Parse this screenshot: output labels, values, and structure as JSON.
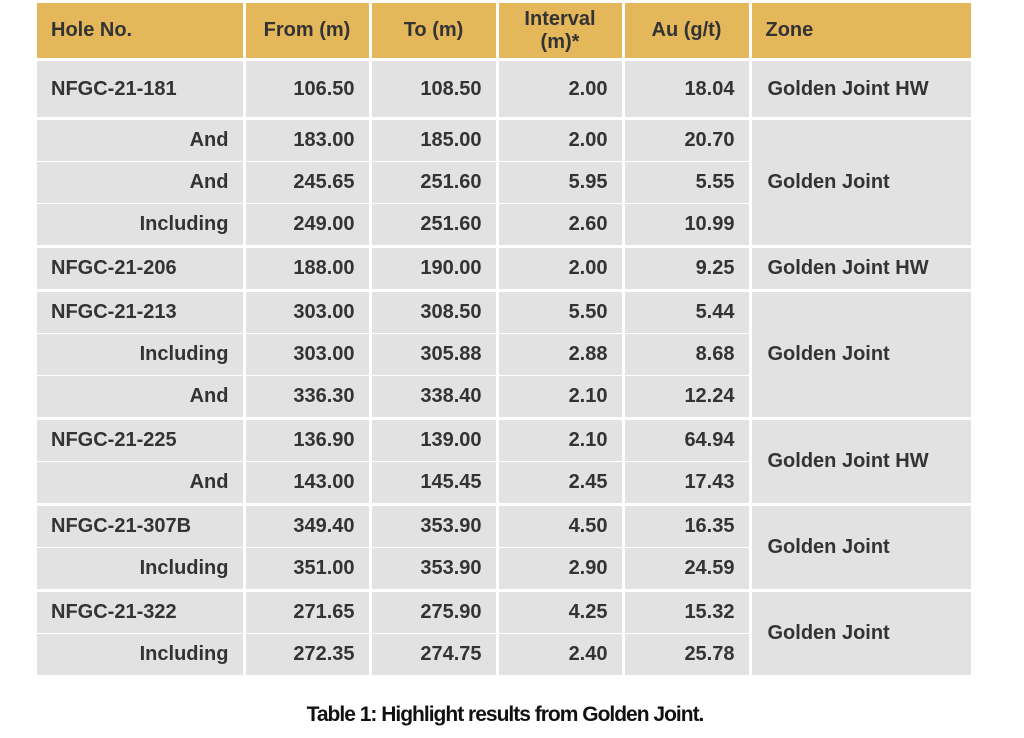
{
  "table": {
    "header": [
      "Hole No.",
      "From (m)",
      "To (m)",
      "Interval (m)*",
      "Au (g/t)",
      "Zone"
    ],
    "groups": [
      {
        "zone": "Golden Joint HW",
        "rows": [
          [
            "NFGC-21-181",
            "106.50",
            "108.50",
            "2.00",
            "18.04"
          ]
        ]
      },
      {
        "zone": "Golden Joint",
        "rows": [
          [
            "And",
            "183.00",
            "185.00",
            "2.00",
            "20.70"
          ],
          [
            "And",
            "245.65",
            "251.60",
            "5.95",
            "5.55"
          ],
          [
            "Including",
            "249.00",
            "251.60",
            "2.60",
            "10.99"
          ]
        ]
      },
      {
        "zone": "Golden Joint HW",
        "rows": [
          [
            "NFGC-21-206",
            "188.00",
            "190.00",
            "2.00",
            "9.25"
          ]
        ]
      },
      {
        "zone": "Golden Joint",
        "rows": [
          [
            "NFGC-21-213",
            "303.00",
            "308.50",
            "5.50",
            "5.44"
          ],
          [
            "Including",
            "303.00",
            "305.88",
            "2.88",
            "8.68"
          ],
          [
            "And",
            "336.30",
            "338.40",
            "2.10",
            "12.24"
          ]
        ]
      },
      {
        "zone": "Golden Joint HW",
        "rows": [
          [
            "NFGC-21-225",
            "136.90",
            "139.00",
            "2.10",
            "64.94"
          ],
          [
            "And",
            "143.00",
            "145.45",
            "2.45",
            "17.43"
          ]
        ]
      },
      {
        "zone": "Golden Joint",
        "rows": [
          [
            "NFGC-21-307B",
            "349.40",
            "353.90",
            "4.50",
            "16.35"
          ],
          [
            "Including",
            "351.00",
            "353.90",
            "2.90",
            "24.59"
          ]
        ]
      },
      {
        "zone": "Golden Joint",
        "rows": [
          [
            "NFGC-21-322",
            "271.65",
            "275.90",
            "4.25",
            "15.32"
          ],
          [
            "Including",
            "272.35",
            "274.75",
            "2.40",
            "25.78"
          ]
        ]
      }
    ]
  },
  "caption": "Table 1: Highlight results from Golden Joint."
}
